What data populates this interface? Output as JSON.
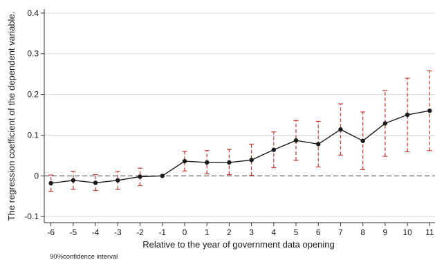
{
  "chart_data": {
    "type": "line",
    "xlabel": "Relative to the year of government data opening",
    "ylabel": "The regression coefficient of the dependent variable.",
    "note": "90%confidence interval",
    "x": [
      -6,
      -5,
      -4,
      -3,
      -2,
      -1,
      0,
      1,
      2,
      3,
      4,
      5,
      6,
      7,
      8,
      9,
      10,
      11
    ],
    "x_tick_labels": [
      "-6",
      "-5",
      "-4",
      "-3",
      "-2",
      "-1",
      "0",
      "1",
      "2",
      "3",
      "4",
      "5",
      "6",
      "7",
      "8",
      "9",
      "10",
      "11"
    ],
    "xlim": [
      -6.3,
      11.3
    ],
    "y_ticks": [
      -0.1,
      0,
      0.1,
      0.2,
      0.3,
      0.4
    ],
    "y_tick_labels": [
      "-0.1",
      "0",
      "0.1",
      "0.2",
      "0.3",
      "0.4"
    ],
    "ylim": [
      -0.115,
      0.41
    ],
    "grid": "horizontal",
    "reference_line": 0,
    "series": [
      {
        "values": [
          -0.018,
          -0.011,
          -0.017,
          -0.011,
          -0.002,
          0.0,
          0.036,
          0.033,
          0.033,
          0.039,
          0.064,
          0.087,
          0.078,
          0.114,
          0.086,
          0.129,
          0.15,
          0.16
        ],
        "ci_low": [
          -0.038,
          -0.033,
          -0.036,
          -0.033,
          -0.024,
          0.0,
          0.012,
          0.005,
          0.003,
          0.001,
          0.02,
          0.038,
          0.022,
          0.051,
          0.015,
          0.048,
          0.059,
          0.062
        ],
        "ci_high": [
          0.002,
          0.011,
          0.003,
          0.011,
          0.019,
          0.0,
          0.06,
          0.062,
          0.065,
          0.078,
          0.108,
          0.136,
          0.134,
          0.177,
          0.157,
          0.21,
          0.24,
          0.258
        ]
      }
    ],
    "colors": {
      "line": "#1a1a1a",
      "ci": "#c0392b",
      "grid": "#d9d9d9",
      "zero": "#555555"
    }
  }
}
